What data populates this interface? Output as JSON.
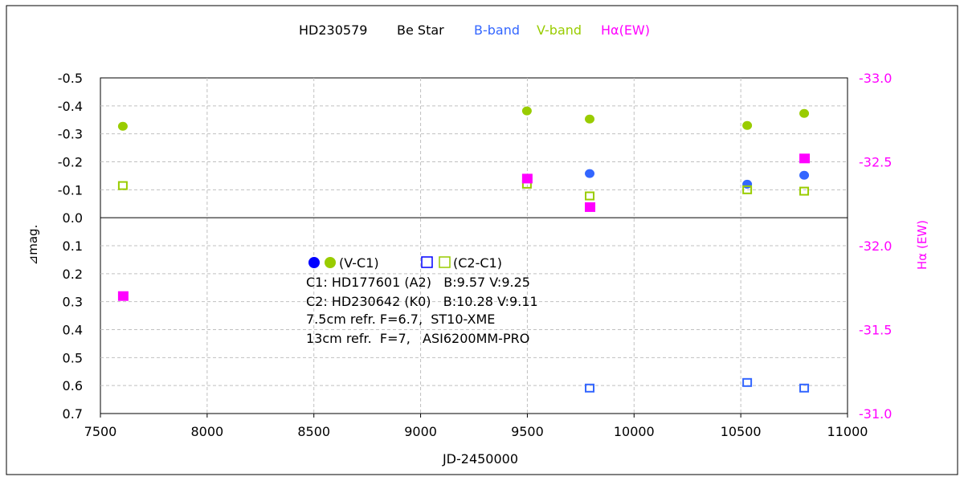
{
  "chart_data": {
    "type": "scatter",
    "title": {
      "star": "HD230579",
      "class": "Be Star",
      "b": "B-band",
      "v": "V-band",
      "ha": "Hα(EW)"
    },
    "xlabel": "JD-2450000",
    "ylabel": "⊿mag.",
    "y2label": "Hα (EW)",
    "xlim": [
      7500,
      11000
    ],
    "ylim": [
      -0.5,
      0.7
    ],
    "y2lim": [
      -33.0,
      -31.0
    ],
    "xticks": [
      7500,
      8000,
      8500,
      9000,
      9500,
      10000,
      10500,
      11000
    ],
    "yticks": [
      "-0.5",
      "-0.4",
      "-0.3",
      "-0.2",
      "-0.1",
      "0.0",
      "0.1",
      "0.2",
      "0.3",
      "0.4",
      "0.5",
      "0.6",
      "0.7"
    ],
    "y2ticks": [
      "-33.0",
      "-32.5",
      "-32.0",
      "-31.5",
      "-31.0"
    ],
    "colors": {
      "b": "#3366ff",
      "v": "#99cc00",
      "ha": "#ff00ff",
      "legend_b": "#0000ff",
      "text": "#000000"
    },
    "series": [
      {
        "name": "V (V-C1)",
        "marker": "circle",
        "color": "#99cc00",
        "x": [
          7605,
          9498,
          9792,
          10530,
          10797
        ],
        "y": [
          -0.327,
          -0.382,
          -0.353,
          -0.33,
          -0.373
        ]
      },
      {
        "name": "B (V-C1)",
        "marker": "circle",
        "color": "#3366ff",
        "x": [
          9792,
          10530,
          10797
        ],
        "y": [
          -0.158,
          -0.12,
          -0.152
        ]
      },
      {
        "name": "V (C2-C1)",
        "marker": "open-square",
        "color": "#99cc00",
        "x": [
          7605,
          9498,
          9792,
          10530,
          10797
        ],
        "y": [
          -0.115,
          -0.12,
          -0.078,
          -0.1,
          -0.095
        ]
      },
      {
        "name": "B (C2-C1)",
        "marker": "open-square",
        "color": "#3366ff",
        "x": [
          9792,
          10530,
          10797
        ],
        "y": [
          0.609,
          0.589,
          0.609
        ]
      },
      {
        "name": "Hα EW",
        "marker": "square",
        "axis": "right",
        "color": "#ff00ff",
        "x": [
          7605,
          9498,
          9792,
          10797
        ],
        "y": [
          -31.7,
          -32.4,
          -32.23,
          -32.52
        ]
      }
    ],
    "legend": {
      "vc1": "(V-C1)",
      "c2c1": "(C2-C1)"
    },
    "notes": [
      "C1: HD177601 (A2)   B:9.57 V:9.25",
      "C2: HD230642 (K0)   B:10.28 V:9.11",
      "7.5cm refr. F=6.7,  ST10-XME",
      "13cm refr.  F=7,   ASI6200MM-PRO"
    ]
  }
}
